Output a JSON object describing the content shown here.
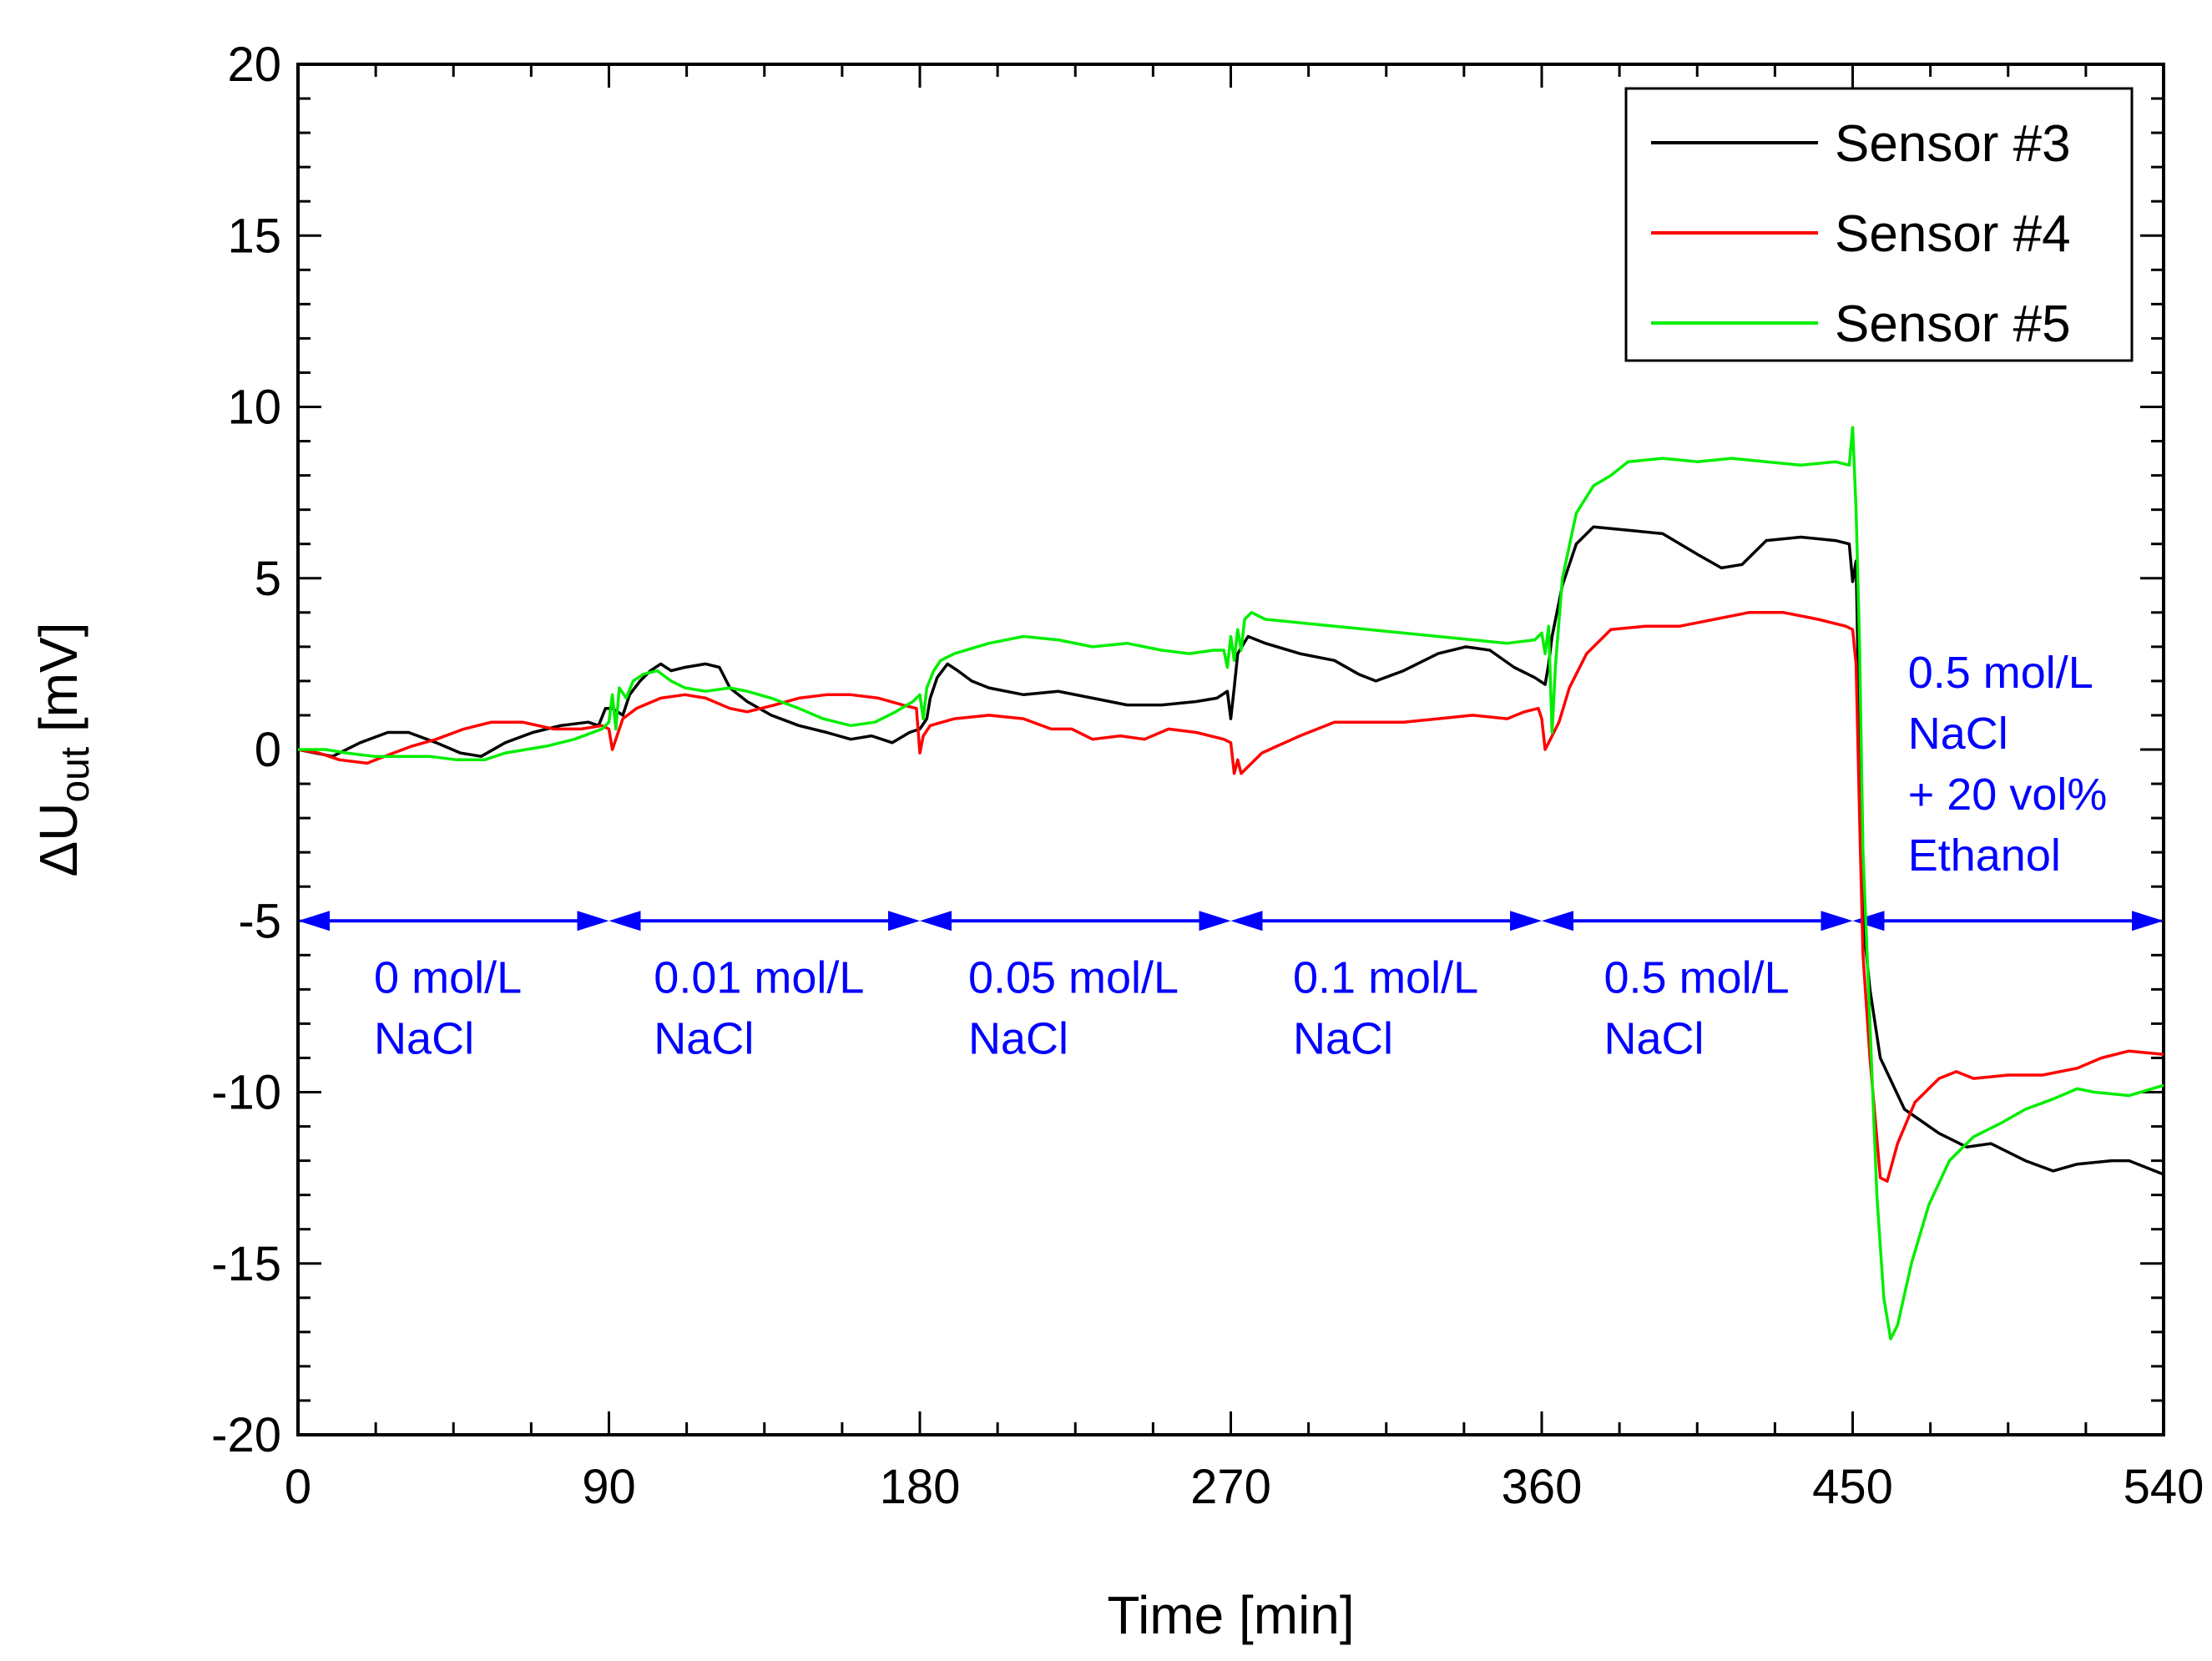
{
  "chart_data": {
    "type": "line",
    "title": "",
    "xlabel": "Time [min]",
    "ylabel_prefix": "ΔU",
    "ylabel_sub": "out",
    "ylabel_suffix": " [mV]",
    "xlim": [
      0,
      540
    ],
    "ylim": [
      -20,
      20
    ],
    "x_ticks": [
      0,
      90,
      180,
      270,
      360,
      450,
      540
    ],
    "y_ticks": [
      20,
      15,
      10,
      5,
      0,
      -5,
      -10,
      -15,
      -20
    ],
    "x_tick_labels": [
      "0",
      "90",
      "180",
      "270",
      "360",
      "450",
      "540"
    ],
    "y_tick_labels": [
      "20",
      "15",
      "10",
      "5",
      "0",
      "-5",
      "-10",
      "-15",
      "-20"
    ],
    "grid": false,
    "legend_position": "top-right",
    "series": [
      {
        "name": "Sensor #3",
        "color": "#000000",
        "points": [
          [
            0,
            0
          ],
          [
            5,
            -0.1
          ],
          [
            10,
            -0.2
          ],
          [
            18,
            0.2
          ],
          [
            26,
            0.5
          ],
          [
            32,
            0.5
          ],
          [
            40,
            0.2
          ],
          [
            47,
            -0.1
          ],
          [
            53,
            -0.2
          ],
          [
            60,
            0.2
          ],
          [
            68,
            0.5
          ],
          [
            76,
            0.7
          ],
          [
            84,
            0.8
          ],
          [
            87,
            0.7
          ],
          [
            89,
            1.2
          ],
          [
            91,
            1.2
          ],
          [
            94,
            1.0
          ],
          [
            96,
            1.6
          ],
          [
            99,
            2.0
          ],
          [
            102,
            2.3
          ],
          [
            105,
            2.5
          ],
          [
            108,
            2.3
          ],
          [
            112,
            2.4
          ],
          [
            118,
            2.5
          ],
          [
            122,
            2.4
          ],
          [
            125,
            1.8
          ],
          [
            130,
            1.4
          ],
          [
            137,
            1.0
          ],
          [
            145,
            0.7
          ],
          [
            153,
            0.5
          ],
          [
            160,
            0.3
          ],
          [
            166,
            0.4
          ],
          [
            172,
            0.2
          ],
          [
            177,
            0.5
          ],
          [
            180,
            0.6
          ],
          [
            182,
            0.9
          ],
          [
            183,
            1.5
          ],
          [
            185,
            2.1
          ],
          [
            188,
            2.5
          ],
          [
            191,
            2.3
          ],
          [
            195,
            2.0
          ],
          [
            200,
            1.8
          ],
          [
            210,
            1.6
          ],
          [
            220,
            1.7
          ],
          [
            230,
            1.5
          ],
          [
            240,
            1.3
          ],
          [
            250,
            1.3
          ],
          [
            260,
            1.4
          ],
          [
            266,
            1.5
          ],
          [
            269,
            1.7
          ],
          [
            270,
            0.9
          ],
          [
            271,
            1.8
          ],
          [
            272,
            2.8
          ],
          [
            275,
            3.3
          ],
          [
            280,
            3.1
          ],
          [
            290,
            2.8
          ],
          [
            300,
            2.6
          ],
          [
            307,
            2.2
          ],
          [
            312,
            2.0
          ],
          [
            320,
            2.3
          ],
          [
            330,
            2.8
          ],
          [
            338,
            3.0
          ],
          [
            345,
            2.9
          ],
          [
            352,
            2.4
          ],
          [
            358,
            2.1
          ],
          [
            361,
            1.9
          ],
          [
            362,
            2.5
          ],
          [
            363,
            3.3
          ],
          [
            366,
            4.8
          ],
          [
            370,
            6.0
          ],
          [
            375,
            6.5
          ],
          [
            385,
            6.4
          ],
          [
            395,
            6.3
          ],
          [
            405,
            5.7
          ],
          [
            412,
            5.3
          ],
          [
            418,
            5.4
          ],
          [
            425,
            6.1
          ],
          [
            435,
            6.2
          ],
          [
            445,
            6.1
          ],
          [
            449,
            6.0
          ],
          [
            450,
            4.9
          ],
          [
            451,
            5.5
          ],
          [
            452,
            0
          ],
          [
            453,
            -5
          ],
          [
            455,
            -7
          ],
          [
            458,
            -9
          ],
          [
            465,
            -10.5
          ],
          [
            475,
            -11.2
          ],
          [
            483,
            -11.6
          ],
          [
            490,
            -11.5
          ],
          [
            500,
            -12.0
          ],
          [
            508,
            -12.3
          ],
          [
            515,
            -12.1
          ],
          [
            525,
            -12.0
          ],
          [
            530,
            -12.0
          ],
          [
            540,
            -12.4
          ]
        ]
      },
      {
        "name": "Sensor #4",
        "color": "#ff0000",
        "points": [
          [
            0,
            0
          ],
          [
            6,
            -0.1
          ],
          [
            12,
            -0.3
          ],
          [
            20,
            -0.4
          ],
          [
            25,
            -0.2
          ],
          [
            33,
            0.1
          ],
          [
            40,
            0.3
          ],
          [
            48,
            0.6
          ],
          [
            56,
            0.8
          ],
          [
            65,
            0.8
          ],
          [
            74,
            0.6
          ],
          [
            82,
            0.6
          ],
          [
            88,
            0.7
          ],
          [
            90,
            0.6
          ],
          [
            91,
            0
          ],
          [
            92,
            0.3
          ],
          [
            94,
            0.9
          ],
          [
            98,
            1.2
          ],
          [
            105,
            1.5
          ],
          [
            112,
            1.6
          ],
          [
            118,
            1.5
          ],
          [
            125,
            1.2
          ],
          [
            130,
            1.1
          ],
          [
            138,
            1.3
          ],
          [
            145,
            1.5
          ],
          [
            153,
            1.6
          ],
          [
            160,
            1.6
          ],
          [
            168,
            1.5
          ],
          [
            175,
            1.3
          ],
          [
            179,
            1.2
          ],
          [
            180,
            -0.1
          ],
          [
            181,
            0.4
          ],
          [
            183,
            0.7
          ],
          [
            190,
            0.9
          ],
          [
            200,
            1.0
          ],
          [
            210,
            0.9
          ],
          [
            218,
            0.6
          ],
          [
            224,
            0.6
          ],
          [
            230,
            0.3
          ],
          [
            238,
            0.4
          ],
          [
            245,
            0.3
          ],
          [
            252,
            0.6
          ],
          [
            260,
            0.5
          ],
          [
            268,
            0.3
          ],
          [
            270,
            0.2
          ],
          [
            271,
            -0.7
          ],
          [
            272,
            -0.3
          ],
          [
            273,
            -0.7
          ],
          [
            275,
            -0.5
          ],
          [
            279,
            -0.1
          ],
          [
            290,
            0.4
          ],
          [
            300,
            0.8
          ],
          [
            310,
            0.8
          ],
          [
            320,
            0.8
          ],
          [
            330,
            0.9
          ],
          [
            340,
            1.0
          ],
          [
            350,
            0.9
          ],
          [
            355,
            1.1
          ],
          [
            359,
            1.2
          ],
          [
            360,
            0.9
          ],
          [
            361,
            0
          ],
          [
            362,
            0.2
          ],
          [
            365,
            0.8
          ],
          [
            368,
            1.8
          ],
          [
            373,
            2.8
          ],
          [
            380,
            3.5
          ],
          [
            390,
            3.6
          ],
          [
            400,
            3.6
          ],
          [
            410,
            3.8
          ],
          [
            420,
            4.0
          ],
          [
            430,
            4.0
          ],
          [
            440,
            3.8
          ],
          [
            448,
            3.6
          ],
          [
            450,
            3.5
          ],
          [
            451,
            2.5
          ],
          [
            452,
            -2
          ],
          [
            453,
            -6
          ],
          [
            455,
            -9
          ],
          [
            458,
            -12.5
          ],
          [
            460,
            -12.6
          ],
          [
            463,
            -11.5
          ],
          [
            468,
            -10.3
          ],
          [
            475,
            -9.6
          ],
          [
            480,
            -9.4
          ],
          [
            485,
            -9.6
          ],
          [
            495,
            -9.5
          ],
          [
            505,
            -9.5
          ],
          [
            515,
            -9.3
          ],
          [
            522,
            -9.0
          ],
          [
            530,
            -8.8
          ],
          [
            540,
            -8.9
          ]
        ]
      },
      {
        "name": "Sensor #5",
        "color": "#00ee00",
        "points": [
          [
            0,
            0
          ],
          [
            8,
            0
          ],
          [
            14,
            -0.1
          ],
          [
            22,
            -0.2
          ],
          [
            30,
            -0.2
          ],
          [
            38,
            -0.2
          ],
          [
            46,
            -0.3
          ],
          [
            54,
            -0.3
          ],
          [
            60,
            -0.1
          ],
          [
            66,
            0
          ],
          [
            72,
            0.1
          ],
          [
            80,
            0.3
          ],
          [
            88,
            0.6
          ],
          [
            90,
            0.8
          ],
          [
            91,
            1.6
          ],
          [
            92,
            0.6
          ],
          [
            93,
            1.8
          ],
          [
            95,
            1.5
          ],
          [
            97,
            2.0
          ],
          [
            100,
            2.2
          ],
          [
            104,
            2.3
          ],
          [
            108,
            2.0
          ],
          [
            112,
            1.8
          ],
          [
            118,
            1.7
          ],
          [
            125,
            1.8
          ],
          [
            130,
            1.7
          ],
          [
            137,
            1.5
          ],
          [
            145,
            1.2
          ],
          [
            152,
            0.9
          ],
          [
            160,
            0.7
          ],
          [
            167,
            0.8
          ],
          [
            173,
            1.1
          ],
          [
            178,
            1.4
          ],
          [
            180,
            1.6
          ],
          [
            181,
            0.9
          ],
          [
            182,
            1.8
          ],
          [
            184,
            2.3
          ],
          [
            186,
            2.6
          ],
          [
            190,
            2.8
          ],
          [
            200,
            3.1
          ],
          [
            210,
            3.3
          ],
          [
            220,
            3.2
          ],
          [
            230,
            3.0
          ],
          [
            240,
            3.1
          ],
          [
            250,
            2.9
          ],
          [
            258,
            2.8
          ],
          [
            265,
            2.9
          ],
          [
            268,
            2.9
          ],
          [
            269,
            2.4
          ],
          [
            270,
            3.3
          ],
          [
            271,
            2.6
          ],
          [
            272,
            3.5
          ],
          [
            273,
            2.9
          ],
          [
            274,
            3.8
          ],
          [
            276,
            4.0
          ],
          [
            280,
            3.8
          ],
          [
            290,
            3.7
          ],
          [
            300,
            3.6
          ],
          [
            310,
            3.5
          ],
          [
            320,
            3.4
          ],
          [
            330,
            3.3
          ],
          [
            340,
            3.2
          ],
          [
            350,
            3.1
          ],
          [
            358,
            3.2
          ],
          [
            360,
            3.4
          ],
          [
            361,
            2.8
          ],
          [
            362,
            3.6
          ],
          [
            363,
            0.5
          ],
          [
            364,
            2.5
          ],
          [
            366,
            5.0
          ],
          [
            370,
            6.9
          ],
          [
            375,
            7.7
          ],
          [
            380,
            8.0
          ],
          [
            385,
            8.4
          ],
          [
            395,
            8.5
          ],
          [
            405,
            8.4
          ],
          [
            415,
            8.5
          ],
          [
            425,
            8.4
          ],
          [
            435,
            8.3
          ],
          [
            445,
            8.4
          ],
          [
            449,
            8.3
          ],
          [
            450,
            9.4
          ],
          [
            451,
            7.0
          ],
          [
            452,
            3
          ],
          [
            453,
            -3
          ],
          [
            455,
            -8
          ],
          [
            457,
            -13
          ],
          [
            459,
            -16
          ],
          [
            461,
            -17.2
          ],
          [
            463,
            -16.8
          ],
          [
            467,
            -15
          ],
          [
            472,
            -13.3
          ],
          [
            478,
            -12.0
          ],
          [
            485,
            -11.3
          ],
          [
            493,
            -10.9
          ],
          [
            500,
            -10.5
          ],
          [
            508,
            -10.2
          ],
          [
            515,
            -9.9
          ],
          [
            520,
            -10.0
          ],
          [
            530,
            -10.1
          ],
          [
            540,
            -9.8
          ]
        ]
      }
    ],
    "spans": [
      {
        "x0": 0,
        "x1": 90,
        "y": -5,
        "lines": [
          "0 mol/L",
          "NaCl"
        ],
        "label_x": 22,
        "label_y": -7.1
      },
      {
        "x0": 90,
        "x1": 180,
        "y": -5,
        "lines": [
          "0.01 mol/L",
          "NaCl"
        ],
        "label_x": 103,
        "label_y": -7.1
      },
      {
        "x0": 180,
        "x1": 270,
        "y": -5,
        "lines": [
          "0.05 mol/L",
          "NaCl"
        ],
        "label_x": 194,
        "label_y": -7.1
      },
      {
        "x0": 270,
        "x1": 360,
        "y": -5,
        "lines": [
          "0.1 mol/L",
          "NaCl"
        ],
        "label_x": 288,
        "label_y": -7.1
      },
      {
        "x0": 360,
        "x1": 450,
        "y": -5,
        "lines": [
          "0.5 mol/L",
          "NaCl"
        ],
        "label_x": 378,
        "label_y": -7.1
      },
      {
        "x0": 450,
        "x1": 540,
        "y": -5,
        "lines": [
          "0.5 mol/L",
          "NaCl",
          "+ 20 vol%",
          "Ethanol"
        ],
        "label_x": 466,
        "label_y": 1.8
      }
    ],
    "annotation_color": "#0000ff"
  }
}
